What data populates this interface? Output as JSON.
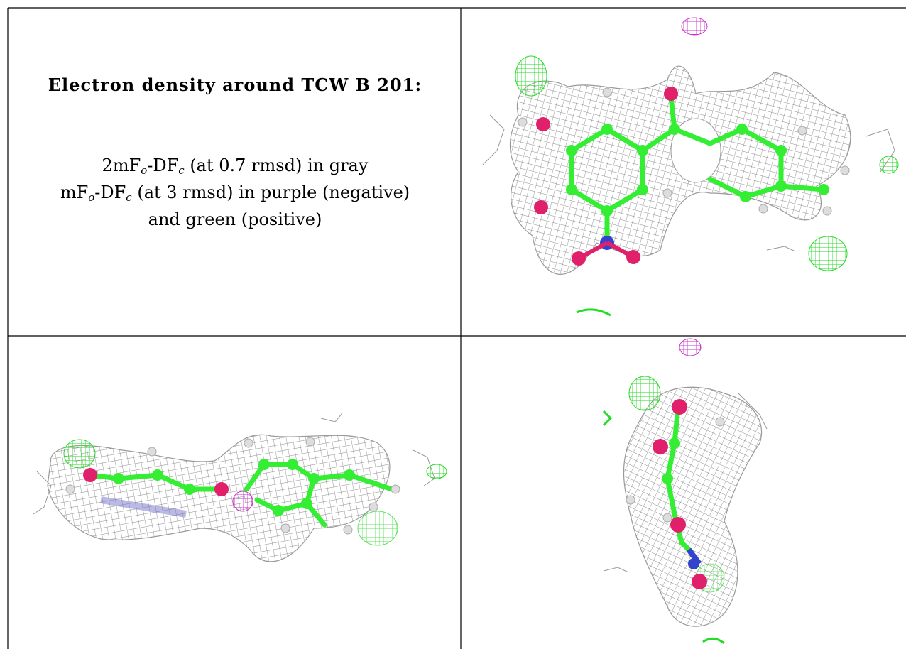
{
  "panel_title": "Electron density around TCW B 201:",
  "legend": {
    "line1_a": "2mF",
    "line1_sub1": "o",
    "line1_b": "-DF",
    "line1_sub2": "c",
    "line1_c": " (at 0.7 rmsd) in gray",
    "line2_a": "mF",
    "line2_sub1": "o",
    "line2_b": "-DF",
    "line2_sub2": "c",
    "line2_c": " (at 3 rmsd) in purple (negative)",
    "line3": "and green (positive)"
  },
  "colors": {
    "mesh_gray": "#8c8c8c",
    "negative_density": "#cc33cc",
    "positive_density": "#22dd22",
    "carbon": "#33ee33",
    "oxygen": "#e0206a",
    "nitrogen": "#3344cc",
    "hydrogen": "#dddddd"
  },
  "views": [
    {
      "name": "view-top"
    },
    {
      "name": "view-side"
    },
    {
      "name": "view-edge"
    }
  ]
}
